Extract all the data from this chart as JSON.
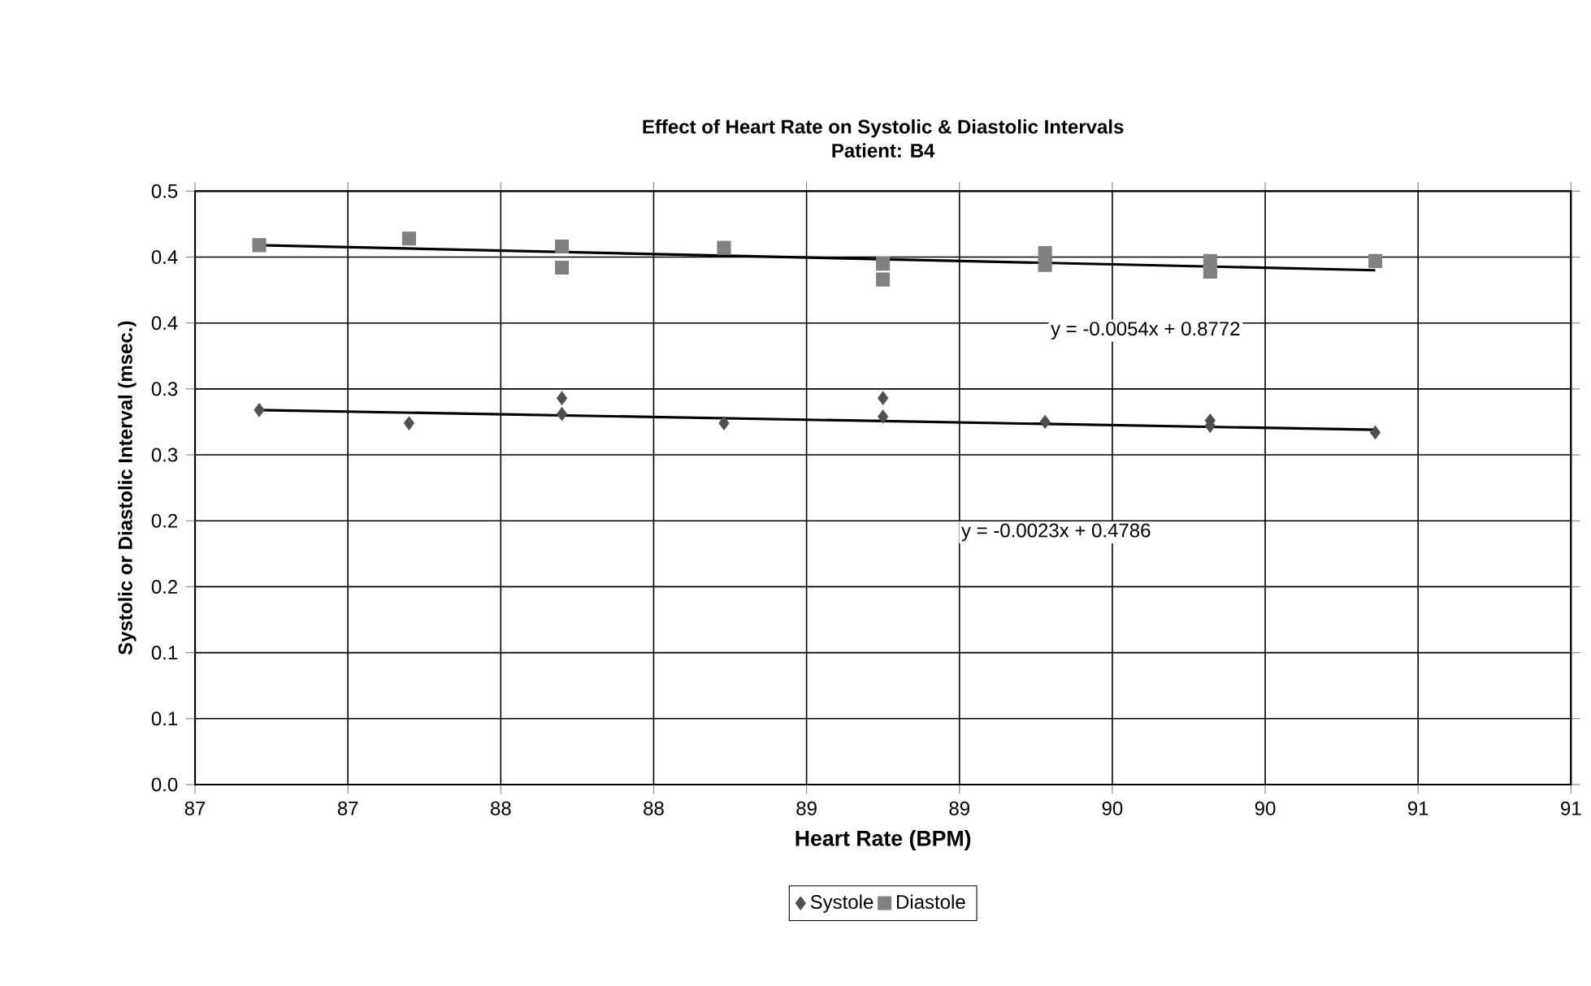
{
  "chart_data": {
    "type": "scatter",
    "title": "Effect of Heart Rate on Systolic & Diastolic Intervals",
    "subtitle": "Patient: B4",
    "xlabel": "Heart Rate (BPM)",
    "ylabel": "Systolic or Diastolic Interval (msec.)",
    "series": [
      {
        "name": "Systole",
        "color": "#505050",
        "marker": "diamond",
        "x": [
          86.71,
          87.2,
          87.7,
          87.7,
          88.23,
          88.75,
          88.75,
          89.28,
          89.82,
          89.82,
          90.36
        ],
        "values": [
          0.284,
          0.274,
          0.293,
          0.281,
          0.274,
          0.293,
          0.279,
          0.275,
          0.276,
          0.272,
          0.267
        ]
      },
      {
        "name": "Diastole",
        "color": "#808080",
        "marker": "square",
        "x": [
          86.71,
          87.2,
          87.7,
          87.7,
          88.23,
          88.75,
          88.75,
          89.28,
          89.28,
          89.82,
          89.82,
          90.36
        ],
        "values": [
          0.409,
          0.414,
          0.408,
          0.392,
          0.407,
          0.395,
          0.383,
          0.403,
          0.394,
          0.397,
          0.389,
          0.397
        ]
      },
      {
        "type": "line",
        "color": "#000000",
        "line_style": "solid",
        "marker": "none",
        "x": [
          86.71,
          90.36
        ],
        "values": [
          0.284,
          0.269
        ]
      },
      {
        "type": "line",
        "color": "#000000",
        "line_style": "solid",
        "marker": "none",
        "x": [
          86.71,
          90.36
        ],
        "values": [
          0.409,
          0.39
        ]
      }
    ],
    "xlim": [
      86.5,
      91
    ],
    "ylim": [
      0,
      0.45
    ],
    "xticks": [
      {
        "value": 86.5,
        "label": "87"
      },
      {
        "value": 87,
        "label": "87"
      },
      {
        "value": 87.5,
        "label": "88"
      },
      {
        "value": 88,
        "label": "88"
      },
      {
        "value": 88.5,
        "label": "89"
      },
      {
        "value": 89,
        "label": "89"
      },
      {
        "value": 89.5,
        "label": "90"
      },
      {
        "value": 90,
        "label": "90"
      },
      {
        "value": 90.5,
        "label": "91"
      },
      {
        "value": 91,
        "label": "91"
      }
    ],
    "yticks": [
      {
        "value": 0,
        "label": "0.0"
      },
      {
        "value": 0.05,
        "label": "0.1"
      },
      {
        "value": 0.1,
        "label": "0.1"
      },
      {
        "value": 0.15,
        "label": "0.2"
      },
      {
        "value": 0.2,
        "label": "0.2"
      },
      {
        "value": 0.25,
        "label": "0.3"
      },
      {
        "value": 0.3,
        "label": "0.3"
      },
      {
        "value": 0.35,
        "label": "0.4"
      },
      {
        "value": 0.4,
        "label": "0.4"
      },
      {
        "value": 0.45,
        "label": "0.5"
      }
    ],
    "annotations": [
      "y = -0.0054x + 0.8772",
      "y = -0.0023x + 0.4786"
    ],
    "grid": true,
    "legend": "bottom"
  }
}
